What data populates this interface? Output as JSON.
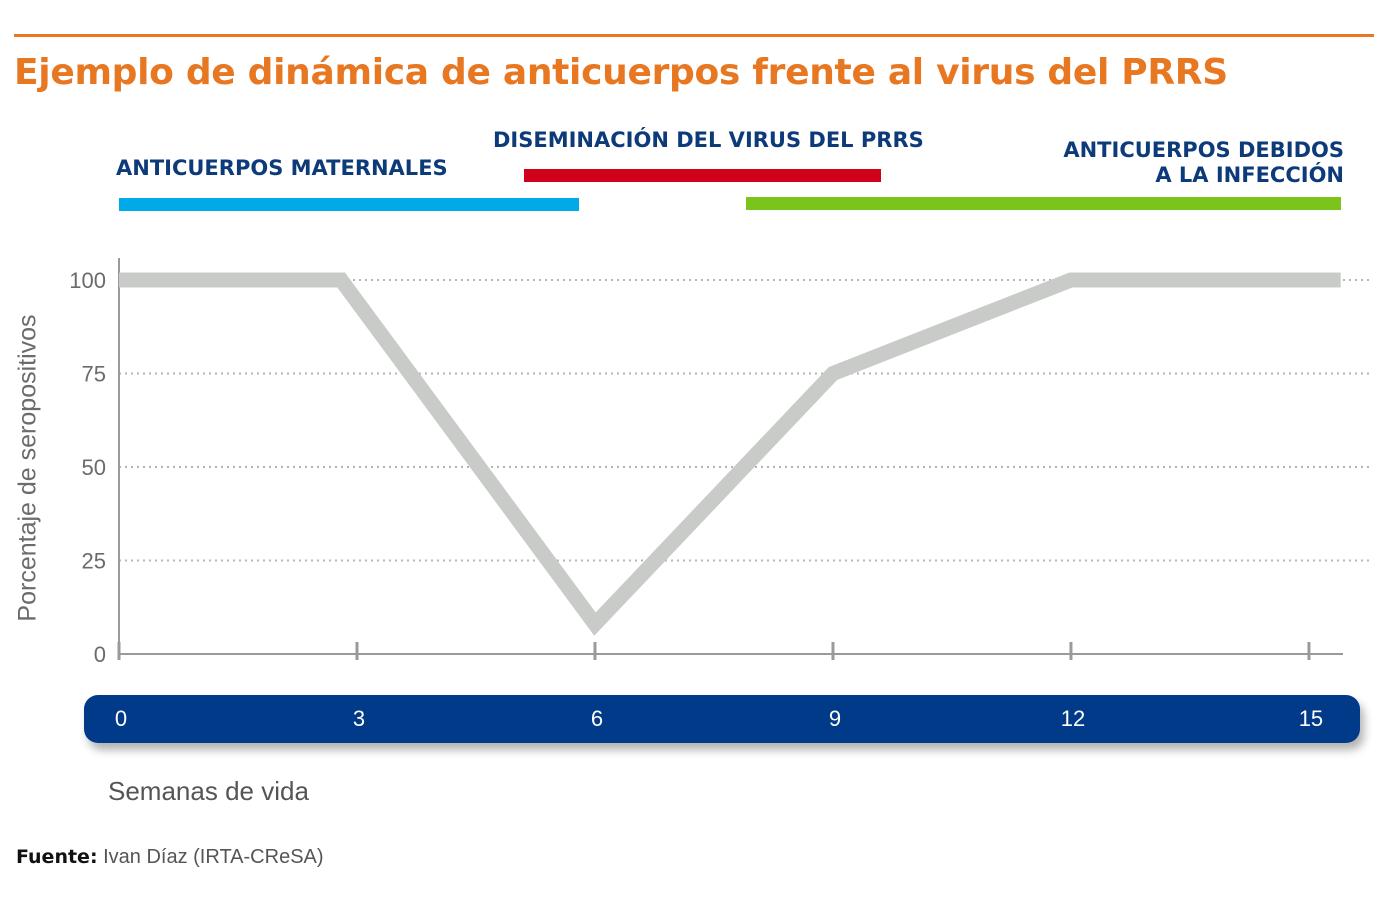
{
  "colors": {
    "accent": "#e87722",
    "navy": "#0d3b7a",
    "axis_band": "#003a88",
    "line": "#c8cbc8",
    "maternal": "#00a9e8",
    "dissemination": "#d0021b",
    "infection": "#7ac41c"
  },
  "phases": {
    "maternal_label": "ANTICUERPOS MATERNALES",
    "dissemination_label": "DISEMINACIÓN DEL VIRUS DEL PRRS",
    "infection_label_line1": "ANTICUERPOS DEBIDOS",
    "infection_label_line2": "A LA INFECCIÓN"
  },
  "chart_data": {
    "type": "line",
    "title": "Ejemplo de dinámica de anticuerpos frente al virus del PRRS",
    "xlabel": "Semanas de vida",
    "ylabel": "Porcentaje de seropositivos",
    "x_ticks": [
      "0",
      "3",
      "6",
      "9",
      "12",
      "15"
    ],
    "y_ticks": [
      "0",
      "25",
      "50",
      "75",
      "100"
    ],
    "xlim": [
      0,
      15.4
    ],
    "ylim": [
      0,
      100
    ],
    "grid": true,
    "series": [
      {
        "x": [
          0,
          2.8,
          6.0,
          9.0,
          12.0,
          15.4
        ],
        "y": [
          100,
          100,
          8,
          75,
          100,
          100
        ]
      }
    ],
    "phase_ranges": [
      {
        "label": "ANTICUERPOS MATERNALES",
        "start": 0,
        "end": 5.8
      },
      {
        "label": "DISEMINACIÓN DEL VIRUS DEL PRRS",
        "start": 5.1,
        "end": 9.6
      },
      {
        "label": "ANTICUERPOS DEBIDOS A LA INFECCIÓN",
        "start": 7.9,
        "end": 15.4
      }
    ]
  },
  "source": {
    "label": "Fuente:",
    "text": "Ivan Díaz (IRTA-CReSA)"
  }
}
